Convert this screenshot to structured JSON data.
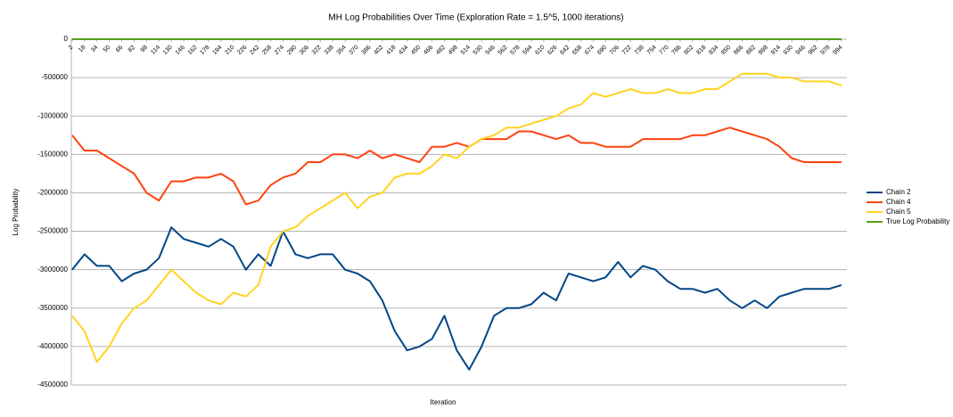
{
  "chart_data": {
    "type": "line",
    "title": "MH Log Probabilities Over Time (Exploration Rate = 1.5^5, 1000 iterations)",
    "x_label": "Iteration",
    "y_label": "Log Probability",
    "x": [
      2,
      18,
      34,
      50,
      66,
      82,
      98,
      114,
      130,
      146,
      162,
      178,
      194,
      210,
      226,
      242,
      258,
      274,
      290,
      306,
      322,
      338,
      354,
      370,
      386,
      402,
      418,
      434,
      450,
      466,
      482,
      498,
      514,
      530,
      546,
      562,
      578,
      594,
      610,
      626,
      642,
      658,
      674,
      690,
      706,
      722,
      738,
      754,
      770,
      786,
      802,
      818,
      834,
      850,
      866,
      882,
      898,
      914,
      930,
      946,
      962,
      978,
      994
    ],
    "xlim": [
      1,
      1001
    ],
    "xticks": [
      2,
      18,
      34,
      50,
      66,
      82,
      98,
      114,
      130,
      146,
      162,
      178,
      194,
      210,
      226,
      242,
      258,
      274,
      290,
      306,
      322,
      338,
      354,
      370,
      386,
      402,
      418,
      434,
      450,
      466,
      482,
      498,
      514,
      530,
      546,
      562,
      578,
      594,
      610,
      626,
      642,
      658,
      674,
      690,
      706,
      722,
      738,
      754,
      770,
      786,
      802,
      818,
      834,
      850,
      866,
      882,
      898,
      914,
      930,
      946,
      962,
      978,
      994
    ],
    "ylim": [
      -4500000,
      0
    ],
    "yticks": [
      -4500000,
      -4000000,
      -3500000,
      -3000000,
      -2500000,
      -2000000,
      -1500000,
      -1000000,
      -500000,
      0
    ],
    "grid": true,
    "legend": "right",
    "series": [
      {
        "name": "Chain 2",
        "color": "#004586",
        "values": [
          -3000000,
          -2800000,
          -2950000,
          -2950000,
          -3150000,
          -3050000,
          -3000000,
          -2850000,
          -2450000,
          -2600000,
          -2650000,
          -2700000,
          -2600000,
          -2700000,
          -3000000,
          -2800000,
          -2950000,
          -2500000,
          -2800000,
          -2850000,
          -2800000,
          -2800000,
          -3000000,
          -3050000,
          -3150000,
          -3400000,
          -3800000,
          -4050000,
          -4000000,
          -3900000,
          -3600000,
          -4050000,
          -4300000,
          -4000000,
          -3600000,
          -3500000,
          -3500000,
          -3450000,
          -3300000,
          -3400000,
          -3050000,
          -3100000,
          -3150000,
          -3100000,
          -2900000,
          -3100000,
          -2950000,
          -3000000,
          -3150000,
          -3250000,
          -3250000,
          -3300000,
          -3250000,
          -3400000,
          -3500000,
          -3400000,
          -3500000,
          -3350000,
          -3300000,
          -3250000,
          -3250000,
          -3250000,
          -3200000
        ]
      },
      {
        "name": "Chain 4",
        "color": "#ff420e",
        "values": [
          -1250000,
          -1450000,
          -1450000,
          -1550000,
          -1650000,
          -1750000,
          -2000000,
          -2100000,
          -1850000,
          -1850000,
          -1800000,
          -1800000,
          -1750000,
          -1850000,
          -2150000,
          -2100000,
          -1900000,
          -1800000,
          -1750000,
          -1600000,
          -1600000,
          -1500000,
          -1500000,
          -1550000,
          -1450000,
          -1550000,
          -1500000,
          -1550000,
          -1600000,
          -1400000,
          -1400000,
          -1350000,
          -1400000,
          -1300000,
          -1300000,
          -1300000,
          -1200000,
          -1200000,
          -1250000,
          -1300000,
          -1250000,
          -1350000,
          -1350000,
          -1400000,
          -1400000,
          -1400000,
          -1300000,
          -1300000,
          -1300000,
          -1300000,
          -1250000,
          -1250000,
          -1200000,
          -1150000,
          -1200000,
          -1250000,
          -1300000,
          -1400000,
          -1550000,
          -1600000,
          -1600000,
          -1600000,
          -1600000
        ]
      },
      {
        "name": "Chain 5",
        "color": "#ffd320",
        "values": [
          -3600000,
          -3800000,
          -4200000,
          -4000000,
          -3700000,
          -3500000,
          -3400000,
          -3200000,
          -3000000,
          -3150000,
          -3300000,
          -3400000,
          -3450000,
          -3300000,
          -3350000,
          -3200000,
          -2700000,
          -2500000,
          -2450000,
          -2300000,
          -2200000,
          -2100000,
          -2000000,
          -2200000,
          -2050000,
          -2000000,
          -1800000,
          -1750000,
          -1750000,
          -1650000,
          -1500000,
          -1550000,
          -1400000,
          -1300000,
          -1250000,
          -1150000,
          -1150000,
          -1100000,
          -1050000,
          -1000000,
          -900000,
          -850000,
          -700000,
          -750000,
          -700000,
          -650000,
          -700000,
          -700000,
          -650000,
          -700000,
          -700000,
          -650000,
          -650000,
          -550000,
          -450000,
          -450000,
          -450000,
          -500000,
          -500000,
          -550000,
          -550000,
          -550000,
          -600000
        ]
      },
      {
        "name": "True Log Probability",
        "color": "#579d1c",
        "values": [
          0,
          0,
          0,
          0,
          0,
          0,
          0,
          0,
          0,
          0,
          0,
          0,
          0,
          0,
          0,
          0,
          0,
          0,
          0,
          0,
          0,
          0,
          0,
          0,
          0,
          0,
          0,
          0,
          0,
          0,
          0,
          0,
          0,
          0,
          0,
          0,
          0,
          0,
          0,
          0,
          0,
          0,
          0,
          0,
          0,
          0,
          0,
          0,
          0,
          0,
          0,
          0,
          0,
          0,
          0,
          0,
          0,
          0,
          0,
          0,
          0,
          0,
          0
        ]
      }
    ]
  }
}
